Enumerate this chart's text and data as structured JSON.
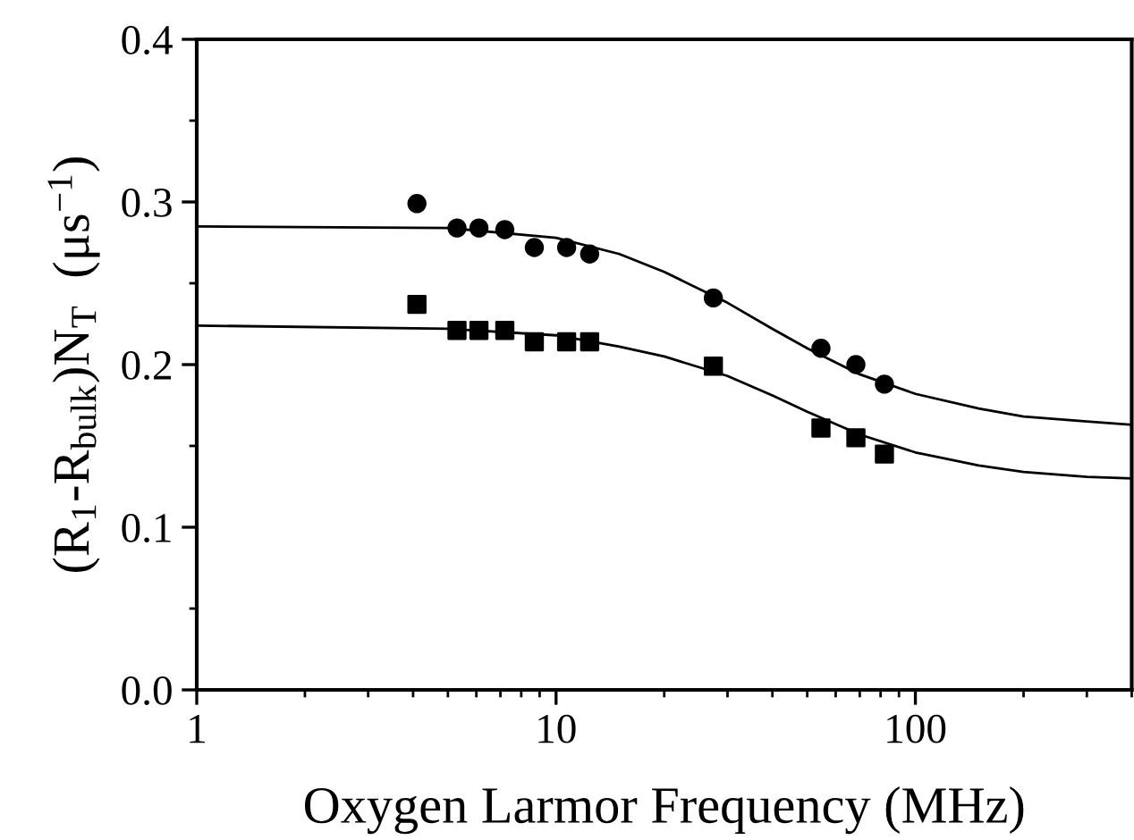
{
  "chart_data": {
    "type": "scatter",
    "xlabel": "Oxygen Larmor Frequency (MHz)",
    "ylabel": "(R$_{1}$-R$_{bulk}$)N$_{T}$  (μs$^{−1}$)",
    "log": "x",
    "xlim": [
      1,
      400
    ],
    "xticks": [
      1,
      10,
      100
    ],
    "ylim": [
      0,
      0.4
    ],
    "yticks": [
      {
        "value": 0,
        "label": "0.0"
      },
      0.1,
      0.2,
      0.3,
      0.4
    ],
    "grid": false,
    "series": [
      {
        "marker": "circle",
        "color": "#000000",
        "x": [
          4.1,
          5.3,
          6.1,
          7.2,
          8.7,
          10.7,
          12.4,
          27.4,
          54.6,
          68.3,
          82
        ],
        "values": [
          0.299,
          0.284,
          0.284,
          0.283,
          0.272,
          0.272,
          0.268,
          0.241,
          0.21,
          0.2,
          0.188
        ]
      },
      {
        "marker": "square",
        "color": "#000000",
        "x": [
          4.1,
          5.3,
          6.1,
          7.2,
          8.7,
          10.7,
          12.4,
          27.4,
          54.6,
          68.3,
          82
        ],
        "values": [
          0.237,
          0.221,
          0.221,
          0.221,
          0.214,
          0.214,
          0.214,
          0.199,
          0.161,
          0.155,
          0.145
        ]
      },
      {
        "type": "line",
        "marker": "none",
        "line_style": "solid",
        "color": "#000000",
        "x": [
          1,
          5,
          10,
          15,
          20,
          30,
          40,
          50,
          70,
          100,
          150,
          200,
          300,
          400
        ],
        "values": [
          0.285,
          0.284,
          0.278,
          0.268,
          0.257,
          0.238,
          0.222,
          0.21,
          0.194,
          0.182,
          0.173,
          0.168,
          0.165,
          0.163
        ]
      },
      {
        "type": "line",
        "marker": "none",
        "line_style": "solid",
        "color": "#000000",
        "x": [
          1,
          5,
          10,
          15,
          20,
          30,
          40,
          50,
          70,
          100,
          150,
          200,
          300,
          400
        ],
        "values": [
          0.224,
          0.222,
          0.218,
          0.211,
          0.205,
          0.193,
          0.181,
          0.171,
          0.157,
          0.146,
          0.138,
          0.134,
          0.131,
          0.13
        ]
      }
    ]
  }
}
